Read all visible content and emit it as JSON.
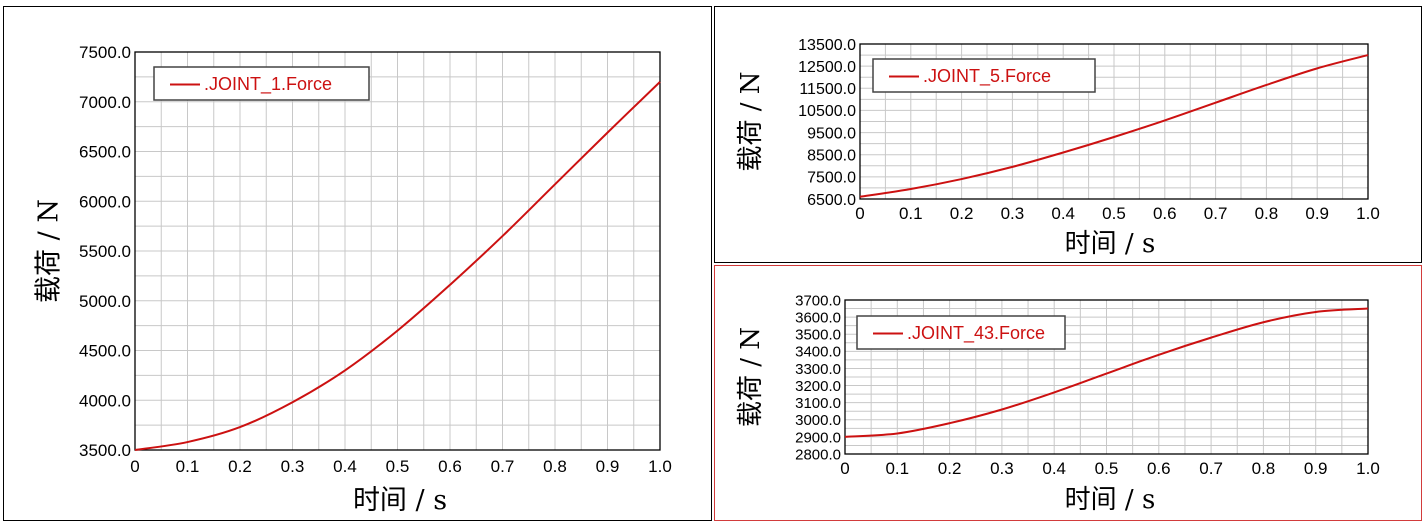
{
  "colors": {
    "series": "#cc1111",
    "grid": "#c8c8c8",
    "frame": "#000000",
    "selected_border": "#d23b3b"
  },
  "chart_data": [
    {
      "type": "line",
      "xlabel": "时间 / s",
      "ylabel": "载荷 / N",
      "legend_position": "top-left",
      "grid": true,
      "xlim": [
        0,
        1.0
      ],
      "ylim": [
        3500,
        7500
      ],
      "x_ticks": [
        "0",
        "0.1",
        "0.2",
        "0.3",
        "0.4",
        "0.5",
        "0.6",
        "0.7",
        "0.8",
        "0.9",
        "1.0"
      ],
      "y_ticks": [
        "3500.0",
        "4000.0",
        "4500.0",
        "5000.0",
        "5500.0",
        "6000.0",
        "6500.0",
        "7000.0",
        "7500.0"
      ],
      "series": [
        {
          "name": ".JOINT_1.Force",
          "x": [
            0,
            0.1,
            0.2,
            0.3,
            0.4,
            0.5,
            0.6,
            0.7,
            0.8,
            0.9,
            1.0
          ],
          "y": [
            3500,
            3580,
            3730,
            3980,
            4300,
            4700,
            5160,
            5650,
            6170,
            6690,
            7200
          ]
        }
      ]
    },
    {
      "type": "line",
      "xlabel": "时间 / s",
      "ylabel": "载荷 / N",
      "legend_position": "top-left",
      "grid": true,
      "xlim": [
        0,
        1.0
      ],
      "ylim": [
        6500,
        13500
      ],
      "x_ticks": [
        "0",
        "0.1",
        "0.2",
        "0.3",
        "0.4",
        "0.5",
        "0.6",
        "0.7",
        "0.8",
        "0.9",
        "1.0"
      ],
      "y_ticks": [
        "6500.0",
        "7500.0",
        "8500.0",
        "9500.0",
        "10500.0",
        "11500.0",
        "12500.0",
        "13500.0"
      ],
      "series": [
        {
          "name": ".JOINT_5.Force",
          "x": [
            0,
            0.1,
            0.2,
            0.3,
            0.4,
            0.5,
            0.6,
            0.7,
            0.8,
            0.9,
            1.0
          ],
          "y": [
            6600,
            6950,
            7400,
            7950,
            8600,
            9300,
            10050,
            10850,
            11650,
            12400,
            13000
          ]
        }
      ]
    },
    {
      "type": "line",
      "xlabel": "时间 / s",
      "ylabel": "载荷 / N",
      "legend_position": "top-left",
      "grid": true,
      "xlim": [
        0,
        1.0
      ],
      "ylim": [
        2800,
        3700
      ],
      "x_ticks": [
        "0",
        "0.1",
        "0.2",
        "0.3",
        "0.4",
        "0.5",
        "0.6",
        "0.7",
        "0.8",
        "0.9",
        "1.0"
      ],
      "y_ticks": [
        "2800.0",
        "2900.0",
        "3000.0",
        "3100.0",
        "3200.0",
        "3300.0",
        "3400.0",
        "3500.0",
        "3600.0",
        "3700.0"
      ],
      "series": [
        {
          "name": ".JOINT_43.Force",
          "x": [
            0,
            0.1,
            0.2,
            0.3,
            0.4,
            0.5,
            0.6,
            0.7,
            0.8,
            0.9,
            1.0
          ],
          "y": [
            2900,
            2920,
            2980,
            3060,
            3160,
            3270,
            3380,
            3480,
            3570,
            3630,
            3650
          ]
        }
      ]
    }
  ]
}
